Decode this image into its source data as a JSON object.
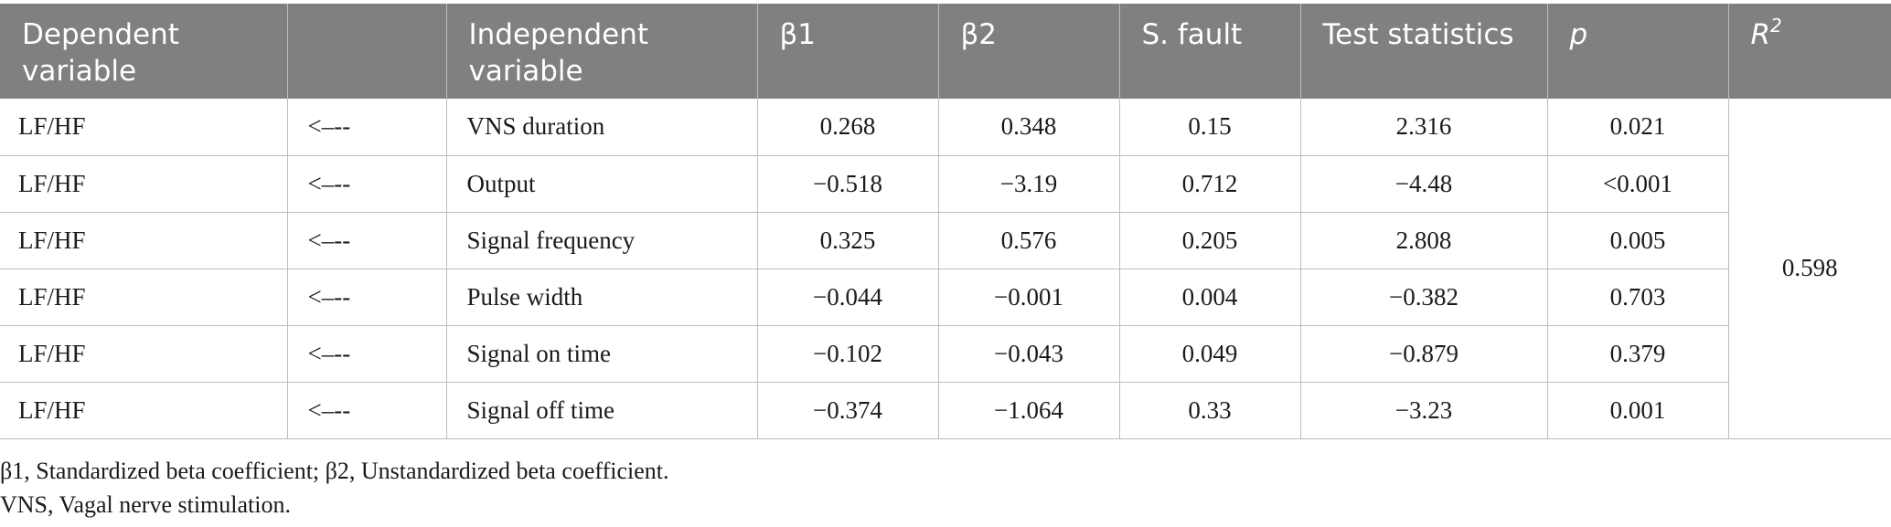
{
  "table": {
    "headers": {
      "dependent": "Dependent variable",
      "arrow": "",
      "independent": "Independent variable",
      "b1": "β1",
      "b2": "β2",
      "se": "S. fault",
      "test": "Test statistics",
      "p": "p",
      "r2_base": "R",
      "r2_sup": "2"
    },
    "r2_value": "0.598",
    "rows": [
      {
        "dep": "LF/HF",
        "arrow": "<–--",
        "indep": "VNS duration",
        "b1": "0.268",
        "b2": "0.348",
        "se": "0.15",
        "test": "2.316",
        "p": "0.021"
      },
      {
        "dep": "LF/HF",
        "arrow": "<–--",
        "indep": "Output",
        "b1": "−0.518",
        "b2": "−3.19",
        "se": "0.712",
        "test": "−4.48",
        "p": "<0.001"
      },
      {
        "dep": "LF/HF",
        "arrow": "<–--",
        "indep": "Signal frequency",
        "b1": "0.325",
        "b2": "0.576",
        "se": "0.205",
        "test": "2.808",
        "p": "0.005"
      },
      {
        "dep": "LF/HF",
        "arrow": "<–--",
        "indep": "Pulse width",
        "b1": "−0.044",
        "b2": "−0.001",
        "se": "0.004",
        "test": "−0.382",
        "p": "0.703"
      },
      {
        "dep": "LF/HF",
        "arrow": "<–--",
        "indep": "Signal on time",
        "b1": "−0.102",
        "b2": "−0.043",
        "se": "0.049",
        "test": "−0.879",
        "p": "0.379"
      },
      {
        "dep": "LF/HF",
        "arrow": "<–--",
        "indep": "Signal off time",
        "b1": "−0.374",
        "b2": "−1.064",
        "se": "0.33",
        "test": "−3.23",
        "p": "0.001"
      }
    ]
  },
  "footnotes": [
    "β1, Standardized beta coefficient; β2, Unstandardized beta coefficient.",
    "VNS, Vagal nerve stimulation."
  ]
}
